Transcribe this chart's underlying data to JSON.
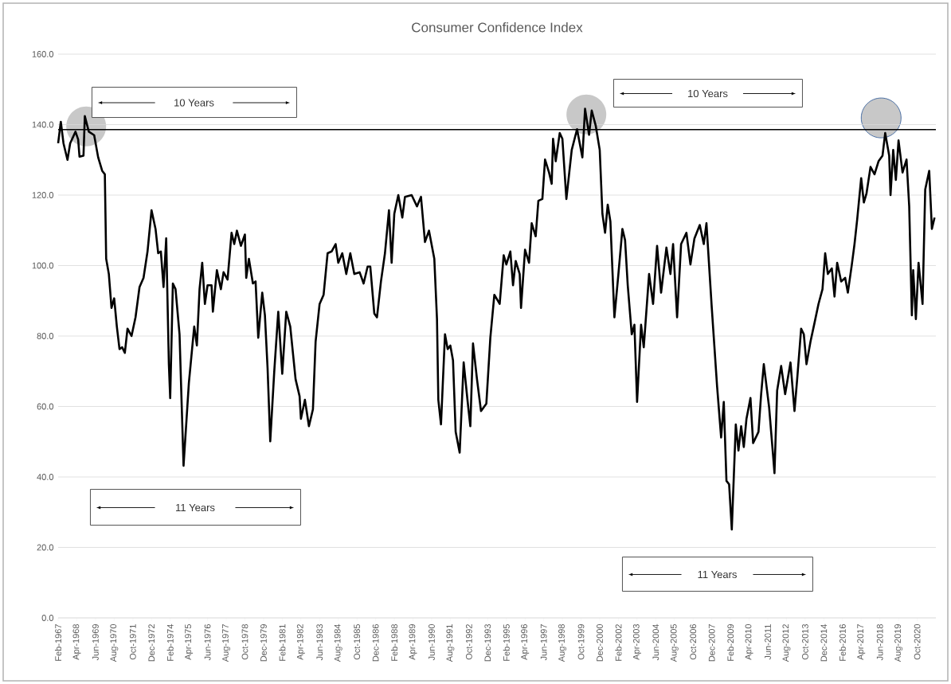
{
  "chart_data": {
    "type": "line",
    "title": "Consumer Confidence Index",
    "x": [
      "1967-02",
      "1967-04",
      "1967-06",
      "1967-09",
      "1967-11",
      "1968-03",
      "1968-05",
      "1968-06",
      "1968-09",
      "1968-10",
      "1969-01",
      "1969-05",
      "1969-08",
      "1969-11",
      "1970-01",
      "1970-02",
      "1970-04",
      "1970-06",
      "1970-08",
      "1970-10",
      "1970-12",
      "1971-02",
      "1971-04",
      "1971-06",
      "1971-09",
      "1971-12",
      "1972-03",
      "1972-06",
      "1972-09",
      "1972-12",
      "1973-03",
      "1973-05",
      "1973-07",
      "1973-09",
      "1973-11",
      "1974-01",
      "1974-02",
      "1974-04",
      "1974-06",
      "1974-09",
      "1974-12",
      "1975-04",
      "1975-08",
      "1975-10",
      "1975-12",
      "1976-02",
      "1976-04",
      "1976-06",
      "1976-09",
      "1976-10",
      "1977-01",
      "1977-04",
      "1977-06",
      "1977-09",
      "1977-12",
      "1978-02",
      "1978-04",
      "1978-07",
      "1978-10",
      "1978-11",
      "1979-01",
      "1979-04",
      "1979-06",
      "1979-08",
      "1979-11",
      "1980-01",
      "1980-03",
      "1980-05",
      "1980-08",
      "1980-11",
      "1981-02",
      "1981-05",
      "1981-08",
      "1981-12",
      "1982-03",
      "1982-04",
      "1982-07",
      "1982-10",
      "1983-01",
      "1983-03",
      "1983-06",
      "1983-09",
      "1983-12",
      "1984-03",
      "1984-06",
      "1984-08",
      "1984-11",
      "1985-02",
      "1985-05",
      "1985-08",
      "1985-12",
      "1986-03",
      "1986-06",
      "1986-08",
      "1986-11",
      "1987-01",
      "1987-04",
      "1987-07",
      "1987-10",
      "1987-12",
      "1988-02",
      "1988-05",
      "1988-08",
      "1988-10",
      "1989-03",
      "1989-07",
      "1989-10",
      "1990-01",
      "1990-04",
      "1990-08",
      "1990-10",
      "1990-11",
      "1991-01",
      "1991-04",
      "1991-06",
      "1991-08",
      "1991-10",
      "1991-12",
      "1992-03",
      "1992-06",
      "1992-09",
      "1992-11",
      "1993-01",
      "1993-04",
      "1993-07",
      "1993-11",
      "1994-02",
      "1994-05",
      "1994-09",
      "1994-12",
      "1995-02",
      "1995-05",
      "1995-07",
      "1995-09",
      "1995-12",
      "1996-01",
      "1996-04",
      "1996-07",
      "1996-09",
      "1996-12",
      "1997-02",
      "1997-05",
      "1997-07",
      "1997-10",
      "1997-12",
      "1998-01",
      "1998-03",
      "1998-06",
      "1998-08",
      "1998-11",
      "1999-03",
      "1999-07",
      "1999-11",
      "2000-01",
      "2000-04",
      "2000-06",
      "2000-09",
      "2000-12",
      "2001-02",
      "2001-04",
      "2001-06",
      "2001-08",
      "2001-11",
      "2002-02",
      "2002-05",
      "2002-07",
      "2002-09",
      "2002-12",
      "2003-02",
      "2003-04",
      "2003-07",
      "2003-09",
      "2004-01",
      "2004-04",
      "2004-07",
      "2004-10",
      "2005-02",
      "2005-05",
      "2005-07",
      "2005-10",
      "2006-01",
      "2006-05",
      "2006-08",
      "2006-11",
      "2007-03",
      "2007-06",
      "2007-08",
      "2007-12",
      "2008-04",
      "2008-07",
      "2008-09",
      "2008-11",
      "2009-01",
      "2009-03",
      "2009-06",
      "2009-08",
      "2009-10",
      "2009-12",
      "2010-02",
      "2010-05",
      "2010-07",
      "2010-11",
      "2011-01",
      "2011-03",
      "2011-07",
      "2011-10",
      "2011-11",
      "2012-01",
      "2012-04",
      "2012-07",
      "2012-11",
      "2013-02",
      "2013-04",
      "2013-07",
      "2013-09",
      "2013-11",
      "2014-02",
      "2014-05",
      "2014-08",
      "2014-11",
      "2015-01",
      "2015-03",
      "2015-06",
      "2015-08",
      "2015-10",
      "2016-01",
      "2016-04",
      "2016-06",
      "2016-09",
      "2016-11",
      "2017-01",
      "2017-04",
      "2017-06",
      "2017-08",
      "2017-11",
      "2018-02",
      "2018-05",
      "2018-08",
      "2018-10",
      "2019-01",
      "2019-02",
      "2019-04",
      "2019-06",
      "2019-08",
      "2019-11",
      "2020-02",
      "2020-04",
      "2020-06",
      "2020-07",
      "2020-09",
      "2020-11",
      "2021-02",
      "2021-04",
      "2021-07",
      "2021-09",
      "2021-11"
    ],
    "series": [
      {
        "color": "#000000",
        "values": [
          134.7,
          140.8,
          134.7,
          130,
          134.7,
          138,
          135.8,
          130.9,
          131.2,
          142.4,
          138,
          137,
          130.7,
          126.9,
          125.9,
          101.9,
          97.6,
          88,
          90.7,
          82.7,
          76.3,
          76.8,
          75.2,
          82.1,
          80,
          85.3,
          93.9,
          96.5,
          104,
          115.7,
          110.4,
          103.5,
          104,
          93.9,
          107.7,
          72,
          62.4,
          94.9,
          93.3,
          80.5,
          43.2,
          66.7,
          82.7,
          77.3,
          93.3,
          100.8,
          89.1,
          94.4,
          94.4,
          86.9,
          98.7,
          93.3,
          98.1,
          96,
          109.3,
          106.1,
          109.9,
          105.6,
          108.8,
          96.5,
          101.9,
          94.9,
          95.5,
          79.5,
          92.3,
          85.9,
          70.9,
          50.1,
          69.9,
          86.9,
          69.3,
          86.9,
          82.7,
          67.7,
          62.9,
          56.5,
          61.9,
          54.4,
          59.2,
          78.4,
          89.1,
          91.7,
          103.5,
          104,
          106.1,
          100.8,
          103.5,
          97.6,
          103.5,
          97.6,
          98.1,
          94.9,
          99.7,
          99.7,
          86.4,
          85.3,
          95.5,
          103.5,
          115.7,
          100.8,
          114.7,
          120,
          113.6,
          119.5,
          120,
          116.8,
          119.5,
          106.7,
          109.9,
          101.9,
          84.8,
          61.9,
          54.9,
          80.5,
          76.3,
          77.3,
          73.1,
          52.8,
          46.9,
          72.5,
          61.3,
          54.4,
          77.9,
          67.7,
          58.7,
          60.8,
          79.5,
          91.7,
          89.1,
          102.9,
          100.3,
          104,
          94.4,
          101.3,
          97.6,
          88,
          104.5,
          100.8,
          112,
          108.3,
          118.4,
          118.9,
          130.1,
          126.4,
          123.2,
          136,
          129.6,
          137.6,
          136,
          118.9,
          132.8,
          138.7,
          130.7,
          144.5,
          137.1,
          144,
          139.7,
          132.8,
          114.7,
          109.3,
          117.3,
          112.5,
          85.3,
          97.6,
          110.4,
          107.2,
          94.4,
          80.5,
          83.2,
          61.3,
          83.2,
          76.8,
          97.6,
          89.1,
          105.6,
          92.3,
          105.1,
          97.6,
          106.1,
          85.3,
          106.1,
          109.3,
          100.3,
          107.7,
          111.5,
          106.1,
          112,
          88,
          65.6,
          51.2,
          61.3,
          38.9,
          37.9,
          25.1,
          54.9,
          47.5,
          54.4,
          48.5,
          56.5,
          62.4,
          49.6,
          52.8,
          63.5,
          72,
          59.7,
          45.9,
          41.1,
          64.5,
          71.5,
          63.5,
          72.5,
          58.7,
          67.7,
          82.1,
          80.5,
          72,
          78.4,
          83.7,
          89.1,
          93.3,
          103.5,
          97.6,
          99.2,
          91.2,
          100.8,
          95.5,
          96.5,
          92.3,
          100.3,
          106.1,
          113.1,
          124.8,
          117.9,
          120.5,
          128,
          125.9,
          129.6,
          131.2,
          137.6,
          131.2,
          120,
          132.8,
          124.3,
          135.5,
          126.4,
          130.1,
          116.8,
          85.9,
          98.7,
          84.8,
          100.8,
          89.1,
          121.6,
          126.9,
          110.4,
          113.6
        ]
      }
    ],
    "xlim": [
      "1967-02",
      "2021-12"
    ],
    "xticks": [
      {
        "value": "1967-02",
        "label": "Feb-1967"
      },
      {
        "value": "1968-04",
        "label": "Apr-1968"
      },
      {
        "value": "1969-06",
        "label": "Jun-1969"
      },
      {
        "value": "1970-08",
        "label": "Aug-1970"
      },
      {
        "value": "1971-10",
        "label": "Oct-1971"
      },
      {
        "value": "1972-12",
        "label": "Dec-1972"
      },
      {
        "value": "1974-02",
        "label": "Feb-1974"
      },
      {
        "value": "1975-04",
        "label": "Apr-1975"
      },
      {
        "value": "1976-06",
        "label": "Jun-1976"
      },
      {
        "value": "1977-08",
        "label": "Aug-1977"
      },
      {
        "value": "1978-10",
        "label": "Oct-1978"
      },
      {
        "value": "1979-12",
        "label": "Dec-1979"
      },
      {
        "value": "1981-02",
        "label": "Feb-1981"
      },
      {
        "value": "1982-04",
        "label": "Apr-1982"
      },
      {
        "value": "1983-06",
        "label": "Jun-1983"
      },
      {
        "value": "1984-08",
        "label": "Aug-1984"
      },
      {
        "value": "1985-10",
        "label": "Oct-1985"
      },
      {
        "value": "1986-12",
        "label": "Dec-1986"
      },
      {
        "value": "1988-02",
        "label": "Feb-1988"
      },
      {
        "value": "1989-04",
        "label": "Apr-1989"
      },
      {
        "value": "1990-06",
        "label": "Jun-1990"
      },
      {
        "value": "1991-08",
        "label": "Aug-1991"
      },
      {
        "value": "1992-10",
        "label": "Oct-1992"
      },
      {
        "value": "1993-12",
        "label": "Dec-1993"
      },
      {
        "value": "1995-02",
        "label": "Feb-1995"
      },
      {
        "value": "1996-04",
        "label": "Apr-1996"
      },
      {
        "value": "1997-06",
        "label": "Jun-1997"
      },
      {
        "value": "1998-08",
        "label": "Aug-1998"
      },
      {
        "value": "1999-10",
        "label": "Oct-1999"
      },
      {
        "value": "2000-12",
        "label": "Dec-2000"
      },
      {
        "value": "2002-02",
        "label": "Feb-2002"
      },
      {
        "value": "2003-04",
        "label": "Apr-2003"
      },
      {
        "value": "2004-06",
        "label": "Jun-2004"
      },
      {
        "value": "2005-08",
        "label": "Aug-2005"
      },
      {
        "value": "2006-10",
        "label": "Oct-2006"
      },
      {
        "value": "2007-12",
        "label": "Dec-2007"
      },
      {
        "value": "2009-02",
        "label": "Feb-2009"
      },
      {
        "value": "2010-04",
        "label": "Apr-2010"
      },
      {
        "value": "2011-06",
        "label": "Jun-2011"
      },
      {
        "value": "2012-08",
        "label": "Aug-2012"
      },
      {
        "value": "2013-10",
        "label": "Oct-2013"
      },
      {
        "value": "2014-12",
        "label": "Dec-2014"
      },
      {
        "value": "2016-02",
        "label": "Feb-2016"
      },
      {
        "value": "2017-04",
        "label": "Apr-2017"
      },
      {
        "value": "2018-06",
        "label": "Jun-2018"
      },
      {
        "value": "2019-08",
        "label": "Aug-2019"
      },
      {
        "value": "2020-10",
        "label": "Oct-2020"
      }
    ],
    "ylim": [
      0,
      160
    ],
    "yticks": [
      {
        "value": 0,
        "label": "0.0"
      },
      {
        "value": 20,
        "label": "20.0"
      },
      {
        "value": 40,
        "label": "40.0"
      },
      {
        "value": 60,
        "label": "60.0"
      },
      {
        "value": 80,
        "label": "80.0"
      },
      {
        "value": 100,
        "label": "100.0"
      },
      {
        "value": 120,
        "label": "120.0"
      },
      {
        "value": 140,
        "label": "140.0"
      },
      {
        "value": 160,
        "label": "160.0"
      }
    ],
    "grid": "y",
    "marker": "none",
    "line_style": "solid",
    "ref_lines": [
      {
        "axis": "y",
        "value": 138.6,
        "color": "#000000"
      }
    ],
    "annotations": [
      "10 Years",
      "11 Years",
      "10 Years",
      "11 Years"
    ]
  }
}
